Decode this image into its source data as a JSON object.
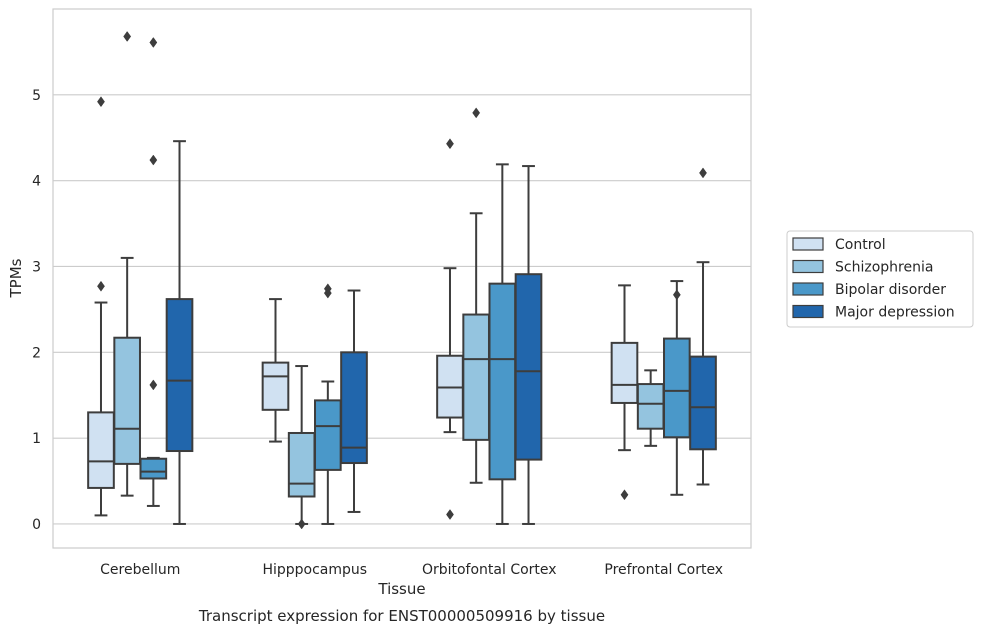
{
  "chart_data": {
    "type": "box",
    "xlabel": "Tissue",
    "ylabel": "TPMs",
    "caption": "Transcript expression for ENST00000509916 by tissue",
    "ylim": [
      -0.28,
      6.0
    ],
    "yticks": [
      0,
      1,
      2,
      3,
      4,
      5
    ],
    "grid": "horizontal",
    "legend_position": "right",
    "categories": [
      "Cerebellum",
      "Hipppocampus",
      "Orbitofontal Cortex",
      "Prefrontal Cortex"
    ],
    "series": [
      {
        "name": "Control",
        "color": "#d0e1f2",
        "boxes": [
          {
            "whislo": 0.1,
            "q1": 0.42,
            "med": 0.73,
            "q3": 1.3,
            "whishi": 2.58,
            "fliers": [
              2.77,
              4.92
            ]
          },
          {
            "whislo": 0.96,
            "q1": 1.33,
            "med": 1.72,
            "q3": 1.88,
            "whishi": 2.62,
            "fliers": []
          },
          {
            "whislo": 1.07,
            "q1": 1.24,
            "med": 1.59,
            "q3": 1.96,
            "whishi": 2.98,
            "fliers": [
              0.11,
              4.43
            ]
          },
          {
            "whislo": 0.86,
            "q1": 1.41,
            "med": 1.62,
            "q3": 2.11,
            "whishi": 2.78,
            "fliers": [
              0.34
            ]
          }
        ]
      },
      {
        "name": "Schizophrenia",
        "color": "#94c4df",
        "boxes": [
          {
            "whislo": 0.33,
            "q1": 0.7,
            "med": 1.11,
            "q3": 2.17,
            "whishi": 3.1,
            "fliers": [
              5.68
            ]
          },
          {
            "whislo": 0.0,
            "q1": 0.32,
            "med": 0.47,
            "q3": 1.06,
            "whishi": 1.84,
            "fliers": [
              0.0
            ]
          },
          {
            "whislo": 0.48,
            "q1": 0.98,
            "med": 1.92,
            "q3": 2.44,
            "whishi": 3.62,
            "fliers": [
              4.79
            ]
          },
          {
            "whislo": 0.91,
            "q1": 1.11,
            "med": 1.4,
            "q3": 1.63,
            "whishi": 1.79,
            "fliers": []
          }
        ]
      },
      {
        "name": "Bipolar disorder",
        "color": "#4a98c9",
        "boxes": [
          {
            "whislo": 0.21,
            "q1": 0.53,
            "med": 0.61,
            "q3": 0.76,
            "whishi": 0.77,
            "fliers": [
              1.62,
              4.24,
              5.61
            ]
          },
          {
            "whislo": 0.0,
            "q1": 0.63,
            "med": 1.14,
            "q3": 1.44,
            "whishi": 1.66,
            "fliers": [
              2.69,
              2.74
            ]
          },
          {
            "whislo": 0.0,
            "q1": 0.52,
            "med": 1.92,
            "q3": 2.8,
            "whishi": 4.19,
            "fliers": []
          },
          {
            "whislo": 0.34,
            "q1": 1.01,
            "med": 1.55,
            "q3": 2.16,
            "whishi": 2.83,
            "fliers": [
              2.67
            ]
          }
        ]
      },
      {
        "name": "Major depression",
        "color": "#2166ac",
        "boxes": [
          {
            "whislo": 0.0,
            "q1": 0.85,
            "med": 1.67,
            "q3": 2.62,
            "whishi": 4.46,
            "fliers": []
          },
          {
            "whislo": 0.14,
            "q1": 0.71,
            "med": 0.89,
            "q3": 2.0,
            "whishi": 2.72,
            "fliers": []
          },
          {
            "whislo": 0.0,
            "q1": 0.75,
            "med": 1.78,
            "q3": 2.91,
            "whishi": 4.17,
            "fliers": []
          },
          {
            "whislo": 0.46,
            "q1": 0.87,
            "med": 1.36,
            "q3": 1.95,
            "whishi": 3.05,
            "fliers": [
              4.09
            ]
          }
        ]
      }
    ]
  },
  "style": {
    "grid_color": "#cccccc",
    "edge_color": "#3d3d3d",
    "frame_color": "#cccccc"
  }
}
